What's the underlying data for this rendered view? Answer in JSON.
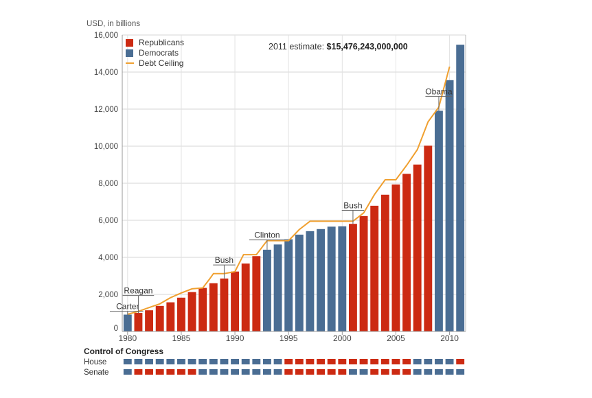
{
  "chart_data": {
    "type": "bar",
    "ylabel": "USD, in billions",
    "ylim": [
      0,
      16000
    ],
    "yticks": [
      0,
      2000,
      4000,
      6000,
      8000,
      10000,
      12000,
      14000,
      16000
    ],
    "ytick_labels": [
      "0",
      "2,000",
      "4,000",
      "6,000",
      "8,000",
      "10,000",
      "12,000",
      "14,000",
      "16,000"
    ],
    "xlim": [
      1980,
      2011
    ],
    "xticks": [
      1980,
      1985,
      1990,
      1995,
      2000,
      2005,
      2010
    ],
    "xtick_labels": [
      "1980",
      "1985",
      "1990",
      "1995",
      "2000",
      "2005",
      "2010"
    ],
    "grid": true,
    "legend_position": "top-left",
    "colors": {
      "republicans": "#cc2a12",
      "democrats": "#4a6d93",
      "debt_ceiling": "#f0a030"
    },
    "legend": [
      {
        "label": "Republicans",
        "kind": "republicans"
      },
      {
        "label": "Democrats",
        "kind": "democrats"
      },
      {
        "label": "Debt Ceiling",
        "kind": "debt_ceiling"
      }
    ],
    "annotation": {
      "prefix": "2011 estimate: ",
      "value": "$15,476,243,000,000"
    },
    "bars": [
      {
        "year": 1980,
        "value": 908,
        "party": "democrats"
      },
      {
        "year": 1981,
        "value": 998,
        "party": "republicans"
      },
      {
        "year": 1982,
        "value": 1142,
        "party": "republicans"
      },
      {
        "year": 1983,
        "value": 1377,
        "party": "republicans"
      },
      {
        "year": 1984,
        "value": 1572,
        "party": "republicans"
      },
      {
        "year": 1985,
        "value": 1823,
        "party": "republicans"
      },
      {
        "year": 1986,
        "value": 2125,
        "party": "republicans"
      },
      {
        "year": 1987,
        "value": 2350,
        "party": "republicans"
      },
      {
        "year": 1988,
        "value": 2602,
        "party": "republicans"
      },
      {
        "year": 1989,
        "value": 2857,
        "party": "republicans"
      },
      {
        "year": 1990,
        "value": 3233,
        "party": "republicans"
      },
      {
        "year": 1991,
        "value": 3665,
        "party": "republicans"
      },
      {
        "year": 1992,
        "value": 4065,
        "party": "republicans"
      },
      {
        "year": 1993,
        "value": 4411,
        "party": "democrats"
      },
      {
        "year": 1994,
        "value": 4693,
        "party": "democrats"
      },
      {
        "year": 1995,
        "value": 4974,
        "party": "democrats"
      },
      {
        "year": 1996,
        "value": 5225,
        "party": "democrats"
      },
      {
        "year": 1997,
        "value": 5413,
        "party": "democrats"
      },
      {
        "year": 1998,
        "value": 5526,
        "party": "democrats"
      },
      {
        "year": 1999,
        "value": 5656,
        "party": "democrats"
      },
      {
        "year": 2000,
        "value": 5674,
        "party": "democrats"
      },
      {
        "year": 2001,
        "value": 5807,
        "party": "republicans"
      },
      {
        "year": 2002,
        "value": 6228,
        "party": "republicans"
      },
      {
        "year": 2003,
        "value": 6783,
        "party": "republicans"
      },
      {
        "year": 2004,
        "value": 7379,
        "party": "republicans"
      },
      {
        "year": 2005,
        "value": 7933,
        "party": "republicans"
      },
      {
        "year": 2006,
        "value": 8507,
        "party": "republicans"
      },
      {
        "year": 2007,
        "value": 9008,
        "party": "republicans"
      },
      {
        "year": 2008,
        "value": 10025,
        "party": "republicans"
      },
      {
        "year": 2009,
        "value": 11910,
        "party": "democrats"
      },
      {
        "year": 2010,
        "value": 13562,
        "party": "democrats"
      },
      {
        "year": 2011,
        "value": 15476,
        "party": "democrats"
      }
    ],
    "debt_ceiling": [
      {
        "x": 1980,
        "y": 925
      },
      {
        "x": 1981,
        "y": 1080
      },
      {
        "x": 1982,
        "y": 1290
      },
      {
        "x": 1983,
        "y": 1490
      },
      {
        "x": 1984,
        "y": 1824
      },
      {
        "x": 1985,
        "y": 2079
      },
      {
        "x": 1986,
        "y": 2300
      },
      {
        "x": 1987,
        "y": 2350
      },
      {
        "x": 1987.6,
        "y": 2800
      },
      {
        "x": 1988,
        "y": 3123
      },
      {
        "x": 1989,
        "y": 3123
      },
      {
        "x": 1990,
        "y": 3230
      },
      {
        "x": 1990.8,
        "y": 4145
      },
      {
        "x": 1992,
        "y": 4145
      },
      {
        "x": 1993,
        "y": 4900
      },
      {
        "x": 1995,
        "y": 4900
      },
      {
        "x": 1996,
        "y": 5500
      },
      {
        "x": 1997,
        "y": 5950
      },
      {
        "x": 2001,
        "y": 5950
      },
      {
        "x": 2002,
        "y": 6400
      },
      {
        "x": 2003,
        "y": 7384
      },
      {
        "x": 2004,
        "y": 8184
      },
      {
        "x": 2005,
        "y": 8184
      },
      {
        "x": 2006,
        "y": 8965
      },
      {
        "x": 2007,
        "y": 9815
      },
      {
        "x": 2008,
        "y": 11315
      },
      {
        "x": 2009,
        "y": 12104
      },
      {
        "x": 2010,
        "y": 14294
      }
    ],
    "presidents": [
      {
        "name": "Carter",
        "year": 1980,
        "label_y": 1200,
        "tail": 1.4
      },
      {
        "name": "Reagan",
        "year": 1981,
        "label_y": 2050,
        "tail": 0
      },
      {
        "name": "Bush",
        "year": 1989,
        "label_y": 3700,
        "tail": 0
      },
      {
        "name": "Clinton",
        "year": 1993,
        "label_y": 5050,
        "tail": 0
      },
      {
        "name": "Bush",
        "year": 2001,
        "label_y": 6650,
        "tail": 0
      },
      {
        "name": "Obama",
        "year": 2009,
        "label_y": 12800,
        "tail": 0
      }
    ],
    "congress": {
      "title": "Control of Congress",
      "start_year": 1980,
      "rows": [
        {
          "label": "House",
          "periods": [
            {
              "from": 1980,
              "to": 1995,
              "party": "democrats"
            },
            {
              "from": 1995,
              "to": 2007,
              "party": "republicans"
            },
            {
              "from": 2007,
              "to": 2011,
              "party": "democrats"
            },
            {
              "from": 2011,
              "to": 2012,
              "party": "republicans"
            }
          ]
        },
        {
          "label": "Senate",
          "periods": [
            {
              "from": 1980,
              "to": 1981,
              "party": "democrats"
            },
            {
              "from": 1981,
              "to": 1987,
              "party": "republicans"
            },
            {
              "from": 1987,
              "to": 1995,
              "party": "democrats"
            },
            {
              "from": 1995,
              "to": 2001,
              "party": "republicans"
            },
            {
              "from": 2001,
              "to": 2003,
              "party": "democrats"
            },
            {
              "from": 2003,
              "to": 2007,
              "party": "republicans"
            },
            {
              "from": 2007,
              "to": 2012,
              "party": "democrats"
            }
          ]
        }
      ]
    }
  }
}
